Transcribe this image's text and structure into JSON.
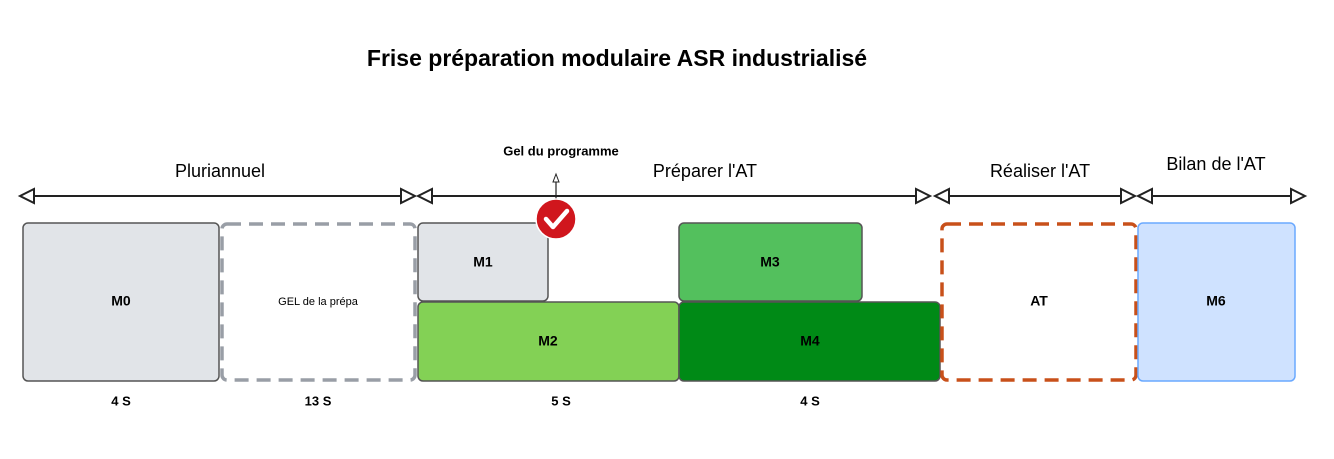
{
  "header": {
    "title": "Frise préparation modulaire ASR industrialisé"
  },
  "phases": [
    "Pluriannuel",
    "Préparer l'AT",
    "Réaliser l'AT",
    "Bilan de l'AT"
  ],
  "milestone": "Gel du programme",
  "boxes": [
    "M0",
    "GEL de la prépa",
    "M1",
    "M2",
    "M3",
    "M4",
    "AT",
    "M6"
  ],
  "durations": [
    "4 S",
    "13 S",
    "5 S",
    "4 S"
  ]
}
